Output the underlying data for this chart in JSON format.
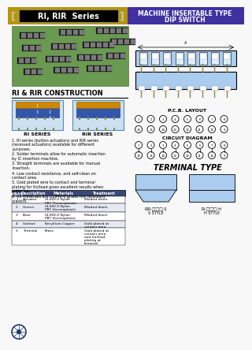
{
  "title_left": "RI, RIR  Series",
  "title_right_line1": "MACHINE INSERTABLE TYPE",
  "title_right_line2": "DIP SWITCH",
  "header_bg_left": "#b8960c",
  "header_bg_right": "#4030a0",
  "construction_title": "RI & RIR CONSTRUCTION",
  "table_headers": [
    "#/BAS",
    "Description",
    "Materials",
    "Treatment"
  ],
  "table_rows": [
    [
      "1",
      "Actuator",
      "UL94V-0 Nylon\nPBT Thermoplastic",
      "Molded white"
    ],
    [
      "2",
      "Covers",
      "UL94V-0 Nylon\nPBT thermoplastic",
      "Molded black,"
    ],
    [
      "3",
      "Base",
      "UL94V-0 Nylon\nPBT thermoplastic",
      "Molded black,"
    ],
    [
      "4",
      "Contact",
      "Beryllium Copper",
      "Gold plated at\ncontact area"
    ],
    [
      "5",
      "Terminal",
      "Brass",
      "Gold plated at\ncontact area\nand tin/lead\nplating at\nterminal"
    ]
  ],
  "pcb_label": "P.C.B. LAYOUT",
  "circuit_label": "CIRCUIT DIAGRAM",
  "terminal_title": "TERMINAL TYPE",
  "bg_color": "#f8f8f8",
  "switch_body_color": "#aaccee",
  "switch_btn_color": "#ddeeff",
  "photo_bg": "#6a9a50",
  "table_header_bg": "#3a4878",
  "compass_color": "#1a3a6a",
  "feature_lines": [
    "1. RI series (button actuators) and RIR series (recessed actuators) available for different purposes.",
    "2. Solder terminals allow for automatic insertion by IC insertion machine.",
    "3. Straight terminals are available for manual insertion.",
    "4. Low contact resistance, and self-clean on contact area.",
    "5. Gold plated wire to contact and terminal plating for tin/lead gives excellent results when soldering.",
    "6. All materials are UL94V-0 grade fire retardant plastics."
  ]
}
